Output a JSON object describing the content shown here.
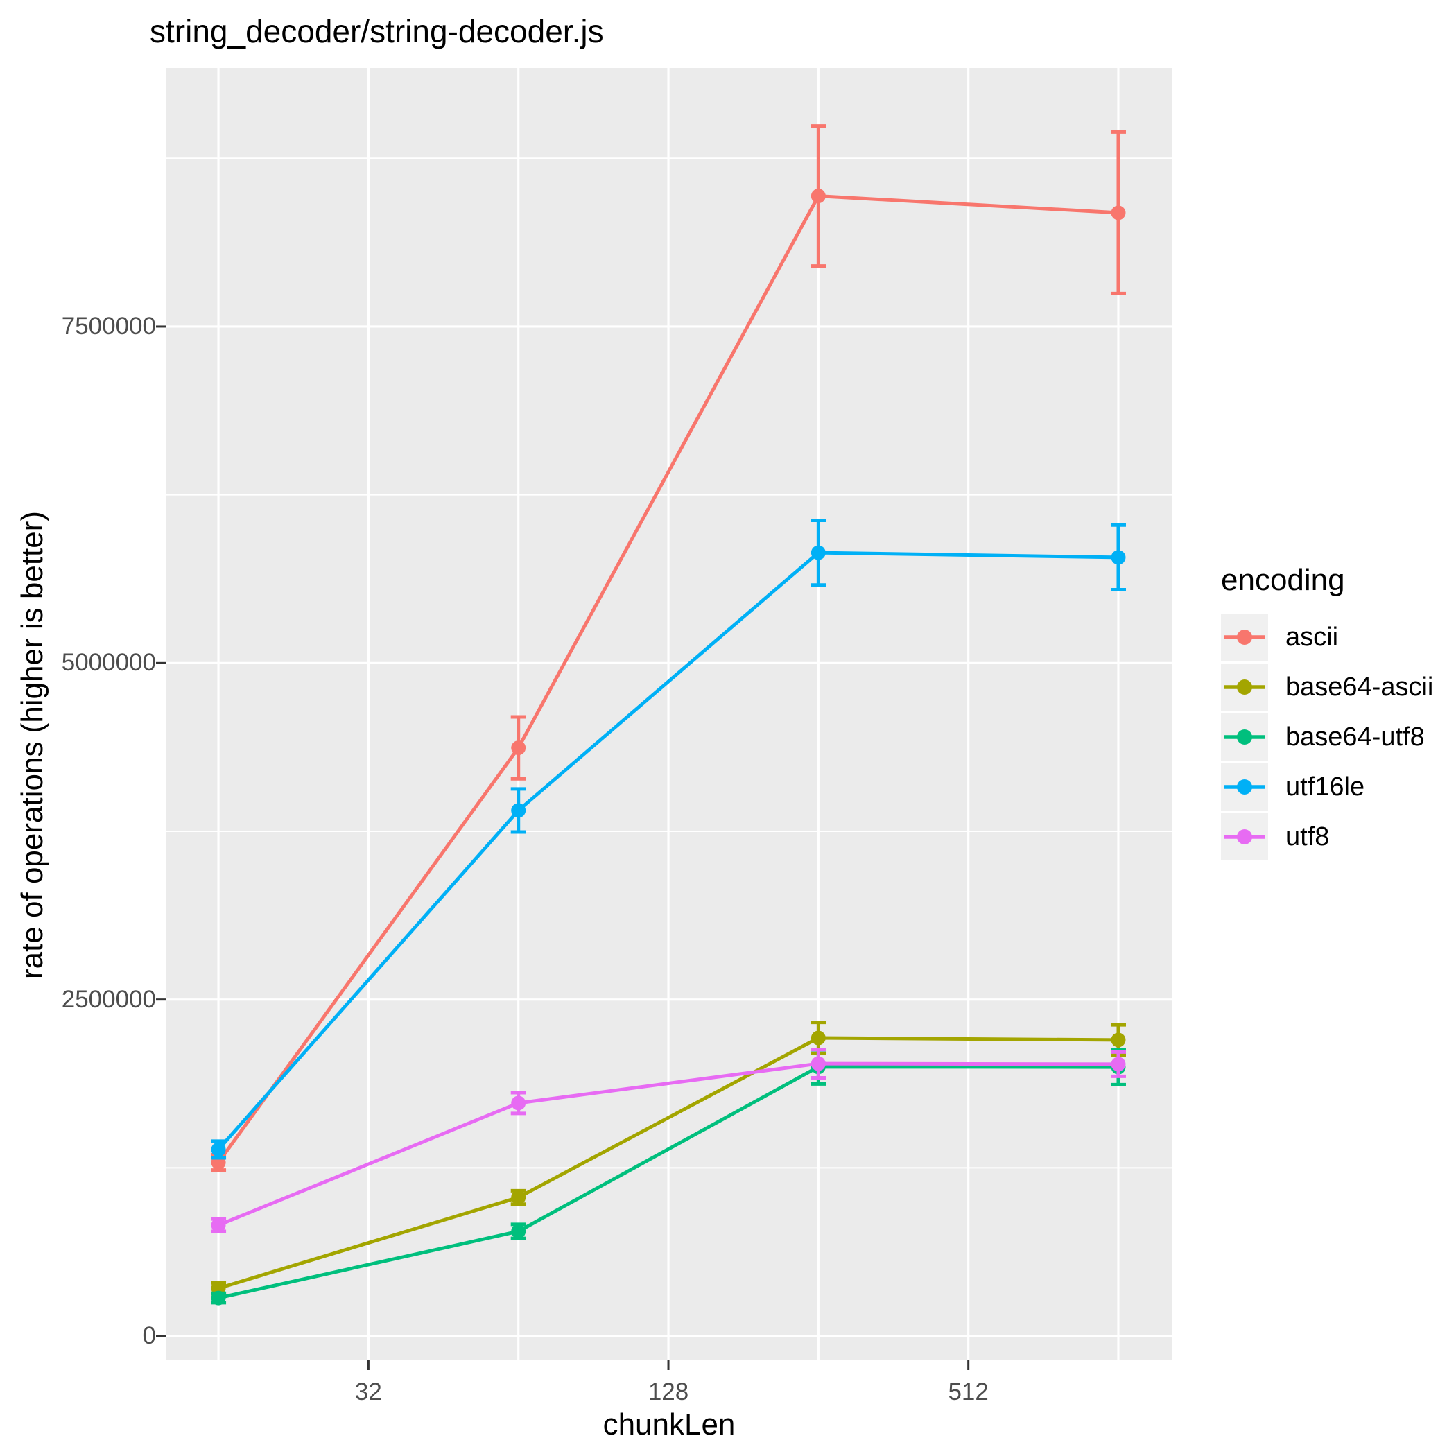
{
  "title": "string_decoder/string-decoder.js",
  "chart_data": {
    "type": "line",
    "title": "string_decoder/string-decoder.js",
    "xlabel": "chunkLen",
    "ylabel": "rate of operations (higher is better)",
    "x": [
      16,
      64,
      256,
      1024
    ],
    "series": [
      {
        "name": "ascii",
        "color": "#F8766D",
        "values": [
          1290000,
          4370000,
          8470000,
          8345000
        ],
        "errors": [
          57000,
          230000,
          520000,
          600000
        ]
      },
      {
        "name": "base64-ascii",
        "color": "#A3A500",
        "values": [
          355000,
          1030000,
          2215000,
          2200000
        ],
        "errors": [
          40000,
          50000,
          115000,
          112000
        ]
      },
      {
        "name": "base64-utf8",
        "color": "#00BF7D",
        "values": [
          283000,
          778000,
          2000000,
          1998000
        ],
        "errors": [
          35000,
          52000,
          127000,
          130000
        ]
      },
      {
        "name": "utf16le",
        "color": "#00B0F6",
        "values": [
          1386000,
          3905000,
          5820000,
          5785000
        ],
        "errors": [
          62000,
          160000,
          240000,
          240000
        ]
      },
      {
        "name": "utf8",
        "color": "#E76BF3",
        "values": [
          824000,
          1731000,
          2024000,
          2020000
        ],
        "errors": [
          46000,
          77000,
          105000,
          90000
        ]
      }
    ],
    "error_bars": true,
    "marker": "circle",
    "axes": {
      "x": {
        "scale": "log2",
        "ticks": [
          {
            "value": 32,
            "label": "32"
          },
          {
            "value": 128,
            "label": "128"
          },
          {
            "value": 512,
            "label": "512"
          }
        ],
        "minor_breaks": [
          16,
          64,
          256,
          1024
        ],
        "lim_log2": [
          3.653,
          10.356
        ]
      },
      "y": {
        "ticks": [
          {
            "value": 0,
            "label": "0"
          },
          {
            "value": 2500000,
            "label": "2500000"
          },
          {
            "value": 5000000,
            "label": "5000000"
          },
          {
            "value": 7500000,
            "label": "7500000"
          }
        ],
        "minor_breaks": [
          1250000,
          3750000,
          6250000,
          8750000
        ],
        "lim": [
          -175000,
          9421000
        ]
      }
    },
    "legend": {
      "title": "encoding",
      "position": "right"
    },
    "grid": true,
    "style": {
      "panel_bg": "#EBEBEB",
      "grid_color": "#FFFFFF",
      "tick_color": "#333333",
      "tick_label_color": "#4d4d4d",
      "text_color": "#000000",
      "legend_key_bg": "#F0F0F0"
    }
  }
}
